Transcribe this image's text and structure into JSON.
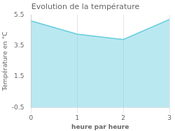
{
  "chart_data": {
    "type": "area",
    "title": "Evolution de la température",
    "xlabel": "heure par heure",
    "ylabel": "Température en °C",
    "x": [
      0,
      1,
      2,
      3
    ],
    "values": [
      5.1,
      4.25,
      3.9,
      5.2
    ],
    "color": "#66ccdd",
    "xlim": [
      0,
      3
    ],
    "xticks": [
      0,
      1,
      2,
      3
    ],
    "ylim": [
      -0.5,
      5.5
    ],
    "yticks": [
      -0.5,
      1.5,
      3.5,
      5.5
    ],
    "grid": "x"
  }
}
